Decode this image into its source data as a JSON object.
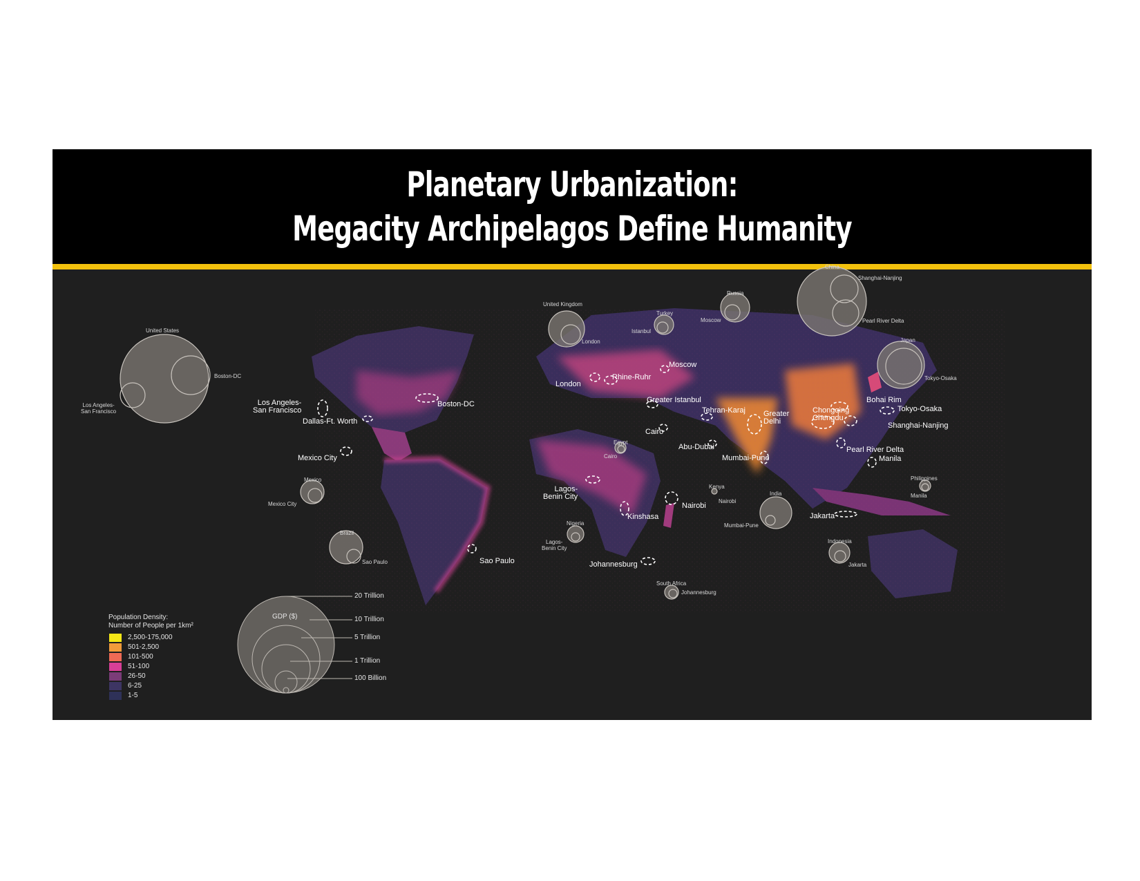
{
  "header": {
    "title_line1": "Planetary Urbanization:",
    "title_line2": "Megacity Archipelagos Define Humanity"
  },
  "colors": {
    "header_bg": "#000000",
    "accent_rule": "#f2c10d",
    "map_bg": "#1f1f1f",
    "gdp_circle": "#7a7570"
  },
  "megacity_labels": {
    "los_angeles": "Los Angeles-\nSan Francisco",
    "boston_dc": "Boston-DC",
    "dallas": "Dallas-Ft. Worth",
    "mexico_city": "Mexico City",
    "sao_paulo": "Sao Paulo",
    "london": "London",
    "rhine_ruhr": "Rhine-Ruhr",
    "moscow": "Moscow",
    "istanbul": "Greater Istanbul",
    "tehran": "Tehran-Karaj",
    "cairo": "Cairo",
    "abu_dubai": "Abu-Dubai",
    "delhi": "Greater\nDelhi",
    "mumbai": "Mumbai-Pune",
    "chongqing": "Chongqing\nChengdu",
    "bohai": "Bohai Rim",
    "tokyo": "Tokyo-Osaka",
    "shanghai": "Shanghai-Nanjing",
    "pearl_river": "Pearl River Delta",
    "manila": "Manila",
    "jakarta": "Jakarta",
    "lagos": "Lagos-\nBenin City",
    "kinshasa": "Kinshasa",
    "nairobi": "Nairobi",
    "johannesburg": "Johannesburg"
  },
  "gdp_bubbles": {
    "us_country": "United States",
    "us_city1": "Boston-DC",
    "us_city2": "Los Angeles-\nSan Francisco",
    "uk_country": "United Kingdom",
    "uk_city": "London",
    "tr_country": "Turkey",
    "tr_city": "Istanbul",
    "ru_country": "Russia",
    "ru_city": "Moscow",
    "cn_country": "China",
    "cn_city1": "Shanghai-Nanjing",
    "cn_city2": "Pearl River Delta",
    "jp_country": "Japan",
    "jp_city": "Tokyo-Osaka",
    "eg_country": "Egypt",
    "eg_city": "Cairo",
    "mx_country": "Mexico",
    "mx_city": "Mexico City",
    "br_country": "Brazil",
    "br_city": "Sao Paulo",
    "ke_country": "Kenya",
    "ke_city": "Nairobi",
    "in_country": "India",
    "in_city": "Mumbai-Pune",
    "ph_country": "Philippines",
    "ph_city": "Manila",
    "ng_country": "Nigeria",
    "ng_city": "Lagos-\nBenin City",
    "id_country": "Indonesia",
    "id_city": "Jakarta",
    "za_country": "South Africa",
    "za_city": "Johannesburg"
  },
  "density_legend": {
    "title": "Population Density:\nNumber of People per 1km²",
    "items": [
      {
        "label": "2,500-175,000",
        "color": "#f5e716"
      },
      {
        "label": "501-2,500",
        "color": "#f29b3a"
      },
      {
        "label": "101-500",
        "color": "#ef6a55"
      },
      {
        "label": "51-100",
        "color": "#d83f97"
      },
      {
        "label": "26-50",
        "color": "#7b3c78"
      },
      {
        "label": "6-25",
        "color": "#3d3563"
      },
      {
        "label": "1-5",
        "color": "#2e3158"
      }
    ]
  },
  "gdp_legend": {
    "title": "GDP ($)",
    "items": [
      "20 Trillion",
      "10 Trillion",
      "5 Trillion",
      "1 Trillion",
      "100 Billion"
    ]
  }
}
